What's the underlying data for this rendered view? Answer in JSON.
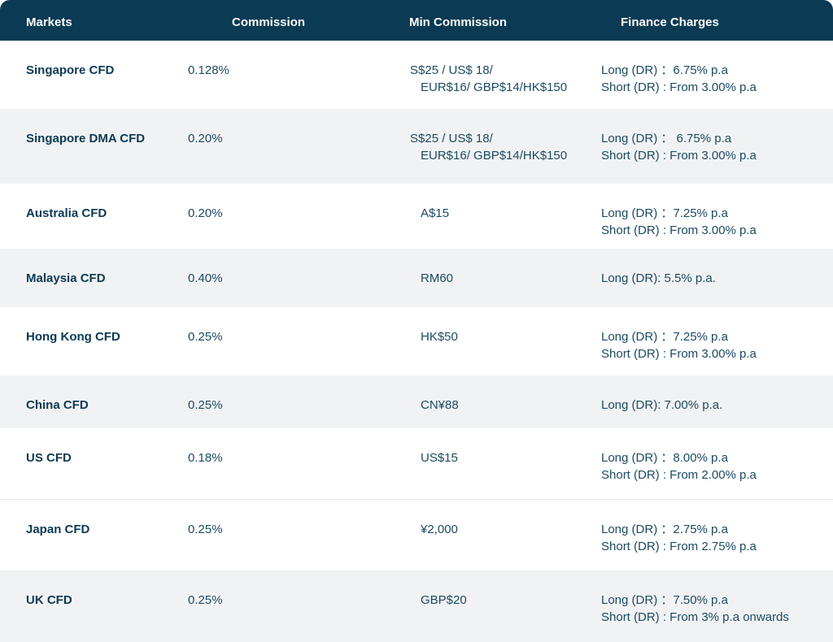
{
  "header": {
    "markets": "Markets",
    "commission": "Commission",
    "min_commission": "Min Commission",
    "finance_charges": "Finance Charges"
  },
  "rows": [
    {
      "market": "Singapore CFD",
      "commission": "0.128%",
      "min_commission": [
        "S$25 / US$ 18/",
        "EUR$16/ GBP$14/HK$150"
      ],
      "finance": [
        "Long (DR) ：6.75% p.a",
        "Short (DR) : From 3.00% p.a"
      ]
    },
    {
      "market": "Singapore DMA CFD",
      "commission": "0.20%",
      "min_commission": [
        "S$25 / US$ 18/",
        "EUR$16/ GBP$14/HK$150"
      ],
      "finance": [
        "Long (DR) ：  6.75% p.a",
        "Short (DR) : From 3.00% p.a"
      ]
    },
    {
      "market": "Australia CFD",
      "commission": "0.20%",
      "min_commission": [
        "A$15"
      ],
      "finance": [
        "Long (DR) ：7.25% p.a",
        "Short (DR) : From 3.00% p.a"
      ]
    },
    {
      "market": "Malaysia CFD",
      "commission": "0.40%",
      "min_commission": [
        "RM60"
      ],
      "finance": [
        "Long  (DR): 5.5% p.a."
      ]
    },
    {
      "market": "Hong Kong CFD",
      "commission": "0.25%",
      "min_commission": [
        "HK$50"
      ],
      "finance": [
        "Long (DR) ：7.25% p.a",
        "Short (DR) : From 3.00% p.a"
      ]
    },
    {
      "market": "China CFD",
      "commission": "0.25%",
      "min_commission": [
        "CN¥88"
      ],
      "finance": [
        "Long  (DR): 7.00% p.a."
      ]
    },
    {
      "market": "US CFD",
      "commission": "0.18%",
      "min_commission": [
        "US$15"
      ],
      "finance": [
        "Long (DR) ：8.00% p.a",
        "Short (DR) : From 2.00% p.a"
      ]
    },
    {
      "market": "Japan CFD",
      "commission": "0.25%",
      "min_commission": [
        "¥2,000"
      ],
      "finance": [
        "Long (DR) ：2.75% p.a",
        "Short (DR) : From 2.75% p.a"
      ]
    },
    {
      "market": "UK CFD",
      "commission": "0.25%",
      "min_commission": [
        "GBP$20"
      ],
      "finance": [
        "Long (DR) ：7.50% p.a",
        "Short (DR) : From 3% p.a onwards"
      ]
    }
  ],
  "colors": {
    "header_bg": "#0b3a54",
    "header_text": "#ffffff",
    "row_text": "#1c4a63",
    "alt_row_bg": "#f1f2f3"
  }
}
